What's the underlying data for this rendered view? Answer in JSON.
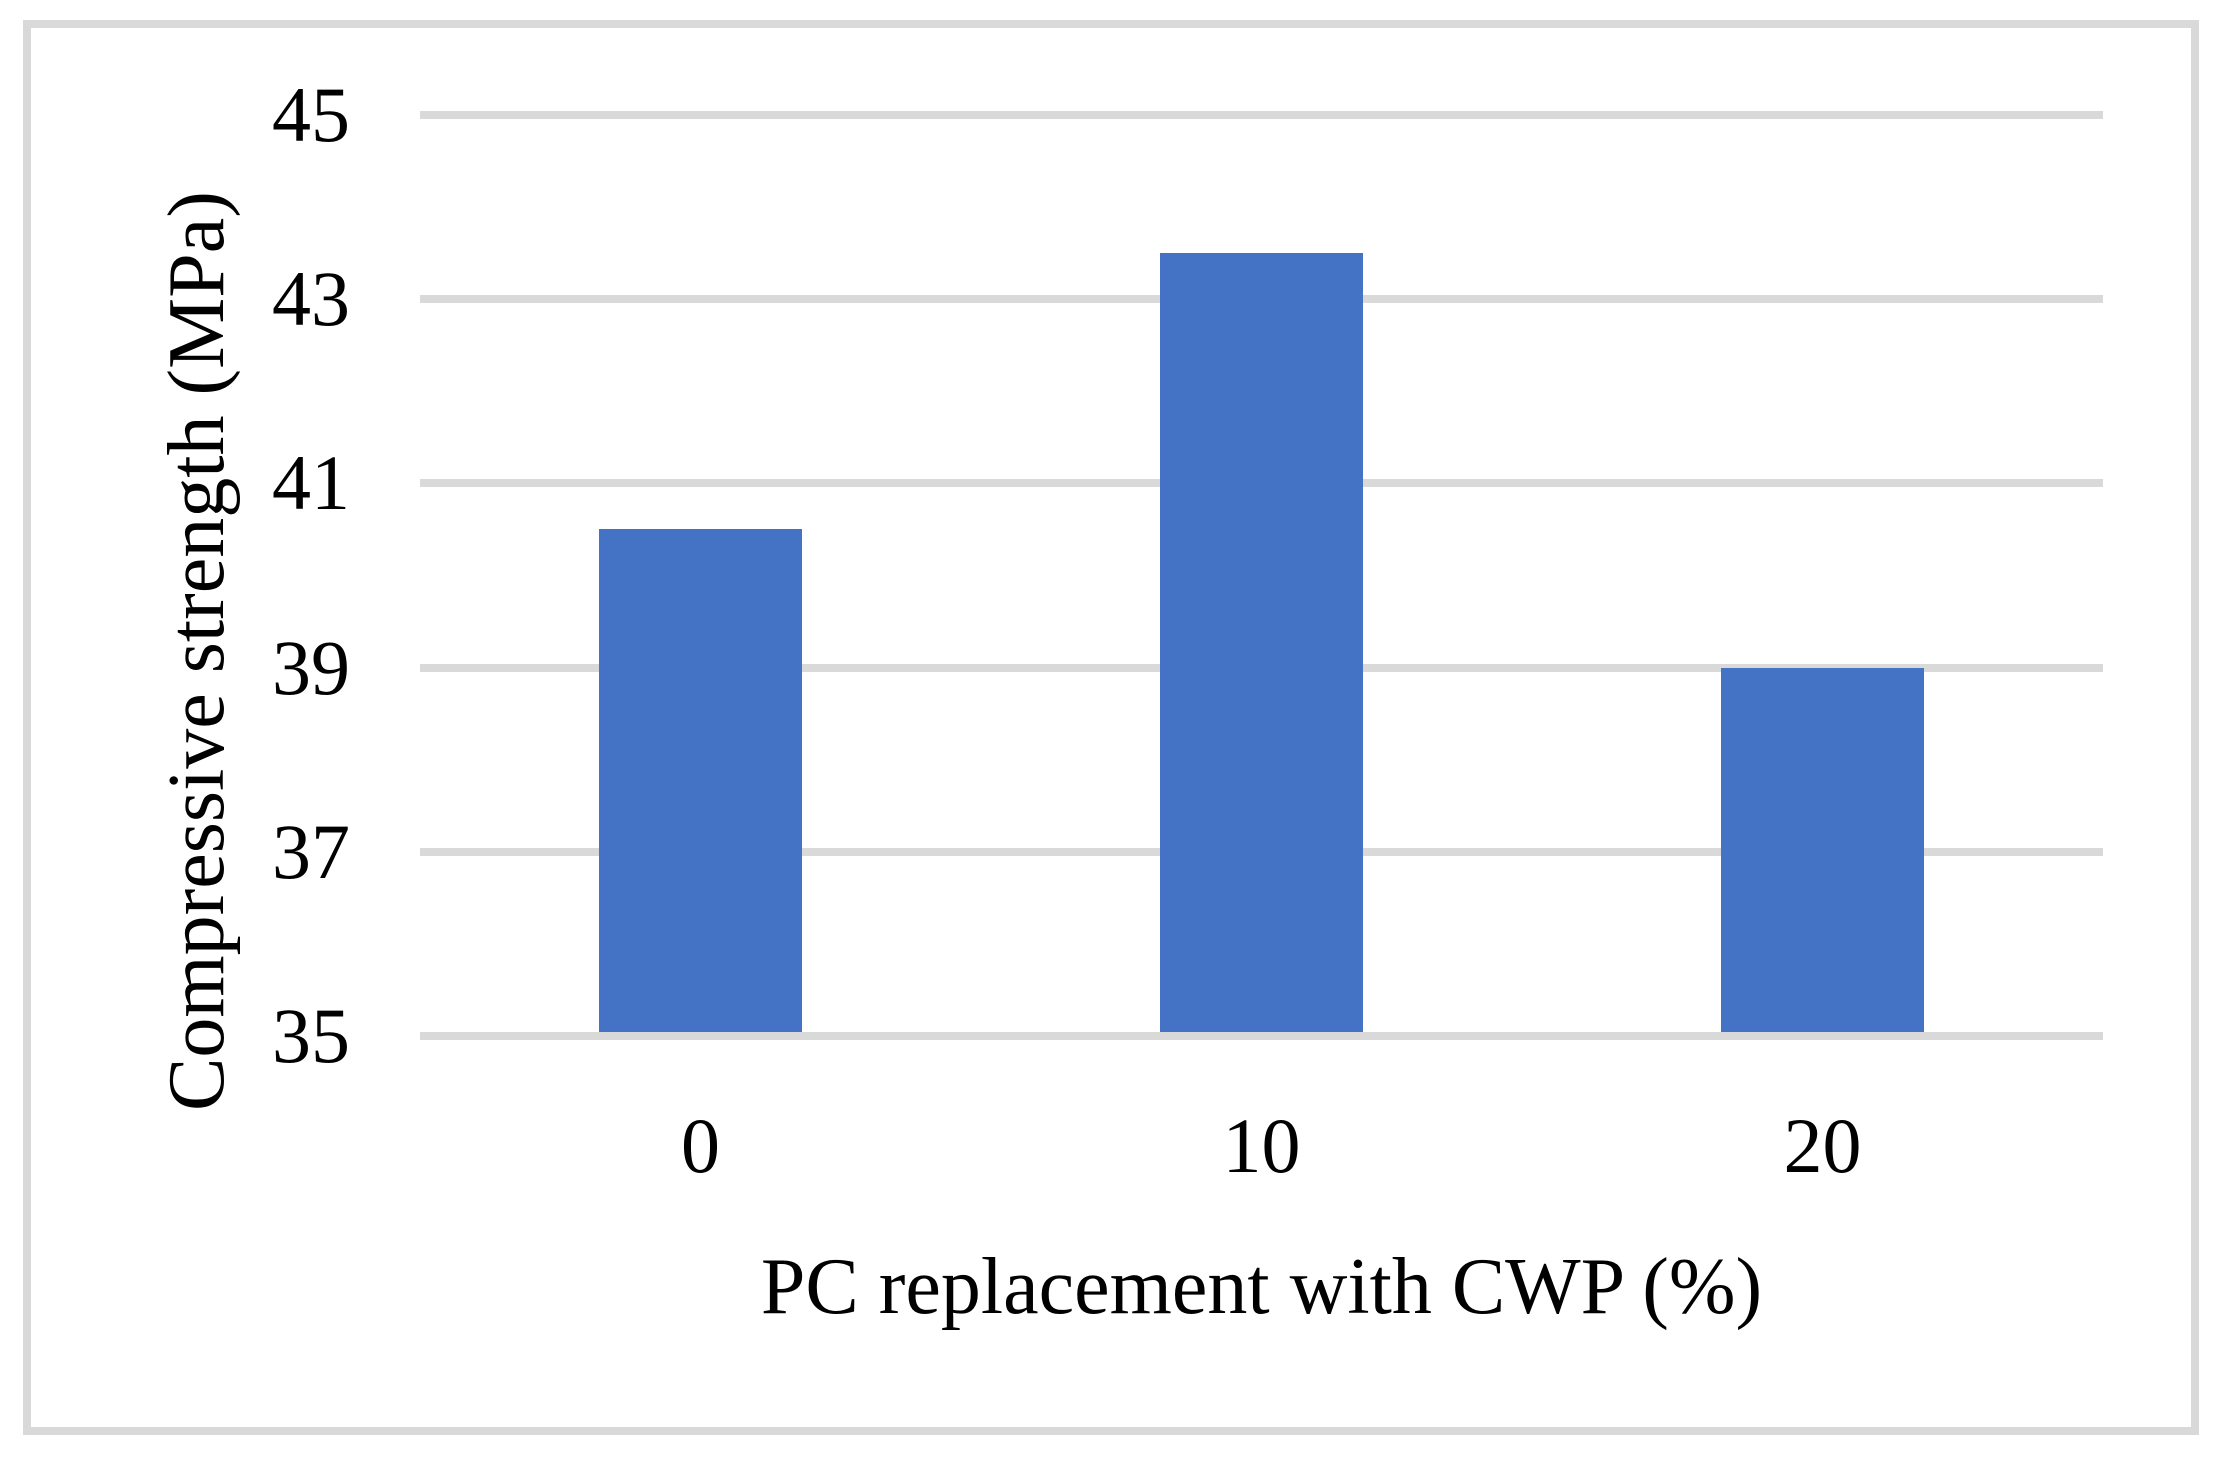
{
  "figure": {
    "frame_color": "#D9D9D9",
    "background_color": "#FFFFFF",
    "text_color": "#000000"
  },
  "chart_data": {
    "type": "bar",
    "categories": [
      "0",
      "10",
      "20"
    ],
    "values": [
      40.5,
      43.5,
      39
    ],
    "xlabel": "PC replacement with CWP (%)",
    "ylabel": "Compressive strength (MPa)",
    "ylim": [
      35,
      45
    ],
    "yticks": [
      35,
      37,
      39,
      41,
      43,
      45
    ],
    "grid": "horizontal",
    "legend": "none",
    "bar_color": "#4472C4",
    "gridline_color": "#D9D9D9"
  }
}
